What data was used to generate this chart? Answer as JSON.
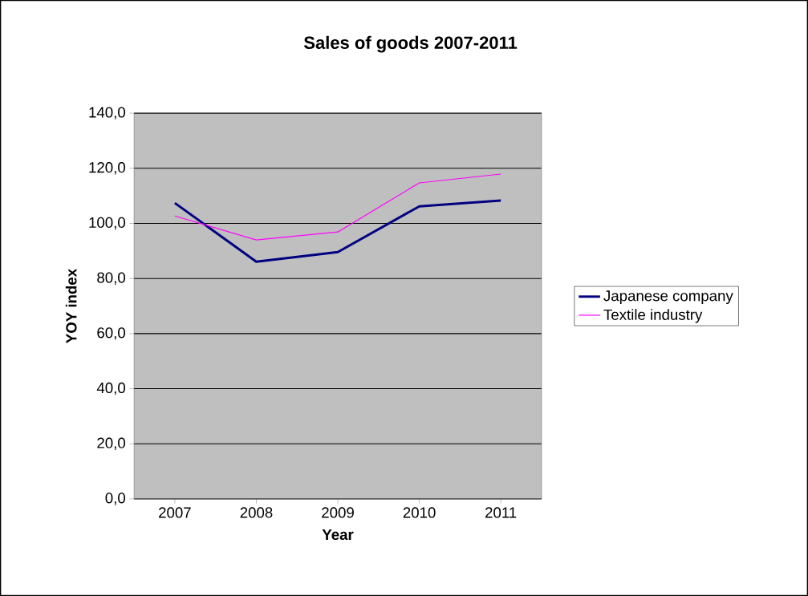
{
  "chart_data": {
    "type": "line",
    "title": "Sales of goods 2007-2011",
    "xlabel": "Year",
    "ylabel": "YOY index",
    "categories": [
      "2007",
      "2008",
      "2009",
      "2010",
      "2011"
    ],
    "series": [
      {
        "name": "Japanese company",
        "color": "#000080",
        "values": [
          107.4,
          86.1,
          89.6,
          106.2,
          108.3
        ]
      },
      {
        "name": "Textile industry",
        "color": "#ff00ff",
        "values": [
          102.7,
          94.0,
          96.9,
          114.7,
          117.9
        ]
      }
    ],
    "ylim": [
      0,
      140
    ],
    "yticks": [
      {
        "value": 0,
        "label": "0,0"
      },
      {
        "value": 20,
        "label": "20,0"
      },
      {
        "value": 40,
        "label": "40,0"
      },
      {
        "value": 60,
        "label": "60,0"
      },
      {
        "value": 80,
        "label": "80,0"
      },
      {
        "value": 100,
        "label": "100,0"
      },
      {
        "value": 120,
        "label": "120,0"
      },
      {
        "value": 140,
        "label": "140,0"
      }
    ],
    "grid": "y",
    "legend": "right"
  }
}
